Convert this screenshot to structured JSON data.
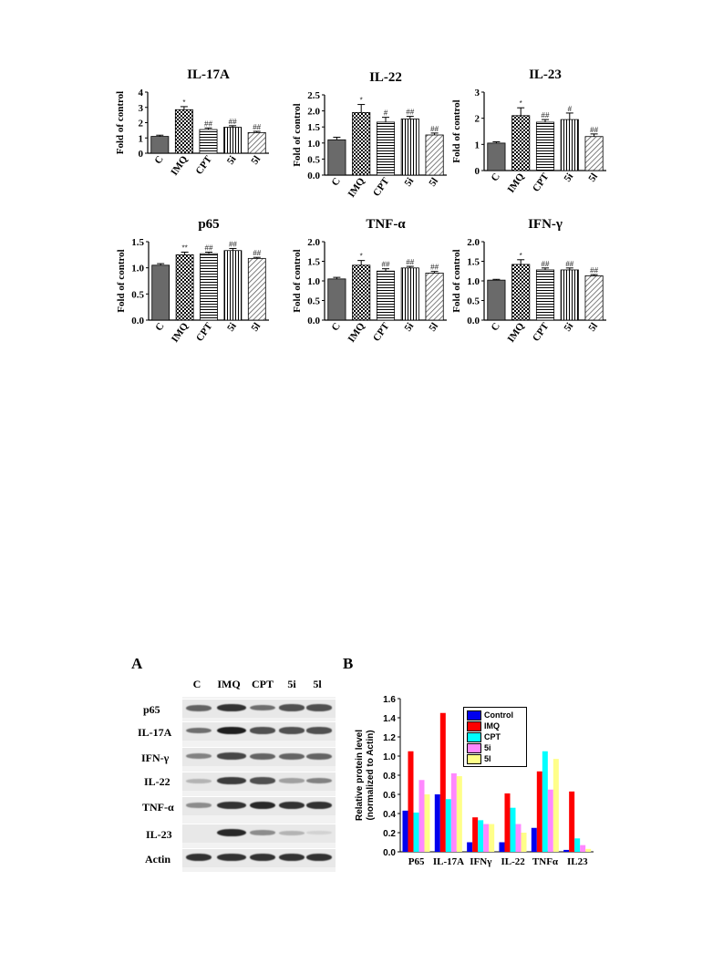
{
  "chart_data": [
    {
      "type": "bar",
      "title": "IL-17A",
      "ylabel": "Fold of control",
      "categories": [
        "C",
        "IMQ",
        "CPT",
        "5i",
        "5l"
      ],
      "values": [
        1.1,
        2.85,
        1.55,
        1.7,
        1.35
      ],
      "errors": [
        0.08,
        0.2,
        0.1,
        0.1,
        0.08
      ],
      "annotations": [
        "",
        "*",
        "##",
        "##",
        "##"
      ],
      "ylim": [
        0,
        4
      ],
      "yticks": [
        "0",
        "1",
        "2",
        "3",
        "4"
      ]
    },
    {
      "type": "bar",
      "title": "IL-22",
      "ylabel": "Fold of control",
      "categories": [
        "C",
        "IMQ",
        "CPT",
        "5i",
        "5l"
      ],
      "values": [
        1.1,
        1.95,
        1.65,
        1.75,
        1.25
      ],
      "errors": [
        0.08,
        0.25,
        0.15,
        0.08,
        0.06
      ],
      "annotations": [
        "",
        "*",
        "#",
        "##",
        "##"
      ],
      "ylim": [
        0,
        2.5
      ],
      "yticks": [
        "0.0",
        "0.5",
        "1.0",
        "1.5",
        "2.0",
        "2.5"
      ]
    },
    {
      "type": "bar",
      "title": "IL-23",
      "ylabel": "Fold of control",
      "categories": [
        "C",
        "IMQ",
        "CPT",
        "5i",
        "5l"
      ],
      "values": [
        1.05,
        2.1,
        1.85,
        1.95,
        1.3
      ],
      "errors": [
        0.05,
        0.3,
        0.1,
        0.25,
        0.1
      ],
      "annotations": [
        "",
        "*",
        "##",
        "#",
        "##"
      ],
      "ylim": [
        0,
        3
      ],
      "yticks": [
        "0",
        "1",
        "2",
        "3"
      ]
    },
    {
      "type": "bar",
      "title": "p65",
      "ylabel": "Fold of control",
      "categories": [
        "C",
        "IMQ",
        "CPT",
        "5i",
        "5l"
      ],
      "values": [
        1.05,
        1.25,
        1.27,
        1.33,
        1.18
      ],
      "errors": [
        0.03,
        0.05,
        0.03,
        0.04,
        0.02
      ],
      "annotations": [
        "",
        "**",
        "##",
        "##",
        "##"
      ],
      "ylim": [
        0,
        1.5
      ],
      "yticks": [
        "0.0",
        "0.5",
        "1.0",
        "1.5"
      ]
    },
    {
      "type": "bar",
      "title": "TNF-α",
      "ylabel": "Fold of control",
      "categories": [
        "C",
        "IMQ",
        "CPT",
        "5i",
        "5l"
      ],
      "values": [
        1.05,
        1.4,
        1.25,
        1.33,
        1.2
      ],
      "errors": [
        0.04,
        0.12,
        0.06,
        0.04,
        0.04
      ],
      "annotations": [
        "",
        "*",
        "##",
        "##",
        "##"
      ],
      "ylim": [
        0,
        2
      ],
      "yticks": [
        "0.0",
        "0.5",
        "1.0",
        "1.5",
        "2.0"
      ]
    },
    {
      "type": "bar",
      "title": "IFN-γ",
      "ylabel": "Fold of control",
      "categories": [
        "C",
        "IMQ",
        "CPT",
        "5i",
        "5l"
      ],
      "values": [
        1.02,
        1.42,
        1.28,
        1.28,
        1.13
      ],
      "errors": [
        0.02,
        0.12,
        0.05,
        0.05,
        0.03
      ],
      "annotations": [
        "",
        "*",
        "##",
        "##",
        "##"
      ],
      "ylim": [
        0,
        2
      ],
      "yticks": [
        "0.0",
        "0.5",
        "1.0",
        "1.5",
        "2.0"
      ]
    },
    {
      "type": "bar",
      "ylabel": "Relative protein level\n(normalized to Actin)",
      "categories": [
        "P65",
        "IL-17A",
        "IFNγ",
        "IL-22",
        "TNFα",
        "IL23"
      ],
      "ylim": [
        0,
        1.6
      ],
      "yticks": [
        "0.0",
        "0.2",
        "0.4",
        "0.6",
        "0.8",
        "1.0",
        "1.2",
        "1.4",
        "1.6"
      ],
      "legend_position": "top-right",
      "series": [
        {
          "name": "Control",
          "color": "#0000ee",
          "values": [
            0.43,
            0.6,
            0.1,
            0.1,
            0.25,
            0.02
          ]
        },
        {
          "name": "IMQ",
          "color": "#ff0000",
          "values": [
            1.05,
            1.45,
            0.36,
            0.61,
            0.84,
            0.63
          ]
        },
        {
          "name": "CPT",
          "color": "#00ffff",
          "values": [
            0.41,
            0.55,
            0.33,
            0.46,
            1.05,
            0.14
          ]
        },
        {
          "name": "5i",
          "color": "#ff88ff",
          "values": [
            0.75,
            0.82,
            0.29,
            0.29,
            0.65,
            0.07
          ]
        },
        {
          "name": "5l",
          "color": "#ffff88",
          "values": [
            0.6,
            0.79,
            0.29,
            0.2,
            0.97,
            0.03
          ]
        }
      ]
    }
  ],
  "blot": {
    "panel_letter": "A",
    "lanes": [
      "C",
      "IMQ",
      "CPT",
      "5i",
      "5l"
    ],
    "rows": [
      {
        "label": "p65",
        "intensities": [
          0.6,
          0.85,
          0.55,
          0.7,
          0.7
        ]
      },
      {
        "label": "IL-17A",
        "intensities": [
          0.55,
          0.95,
          0.7,
          0.7,
          0.7
        ]
      },
      {
        "label": "IFN-γ",
        "intensities": [
          0.45,
          0.75,
          0.6,
          0.6,
          0.6
        ]
      },
      {
        "label": "IL-22",
        "intensities": [
          0.2,
          0.8,
          0.7,
          0.3,
          0.45
        ]
      },
      {
        "label": "TNF-α",
        "intensities": [
          0.4,
          0.85,
          0.9,
          0.85,
          0.85
        ]
      },
      {
        "label": "IL-23",
        "intensities": [
          0.0,
          0.9,
          0.4,
          0.2,
          0.05
        ]
      },
      {
        "label": "Actin",
        "intensities": [
          0.85,
          0.85,
          0.85,
          0.85,
          0.85
        ]
      }
    ]
  },
  "panel_b_letter": "B"
}
